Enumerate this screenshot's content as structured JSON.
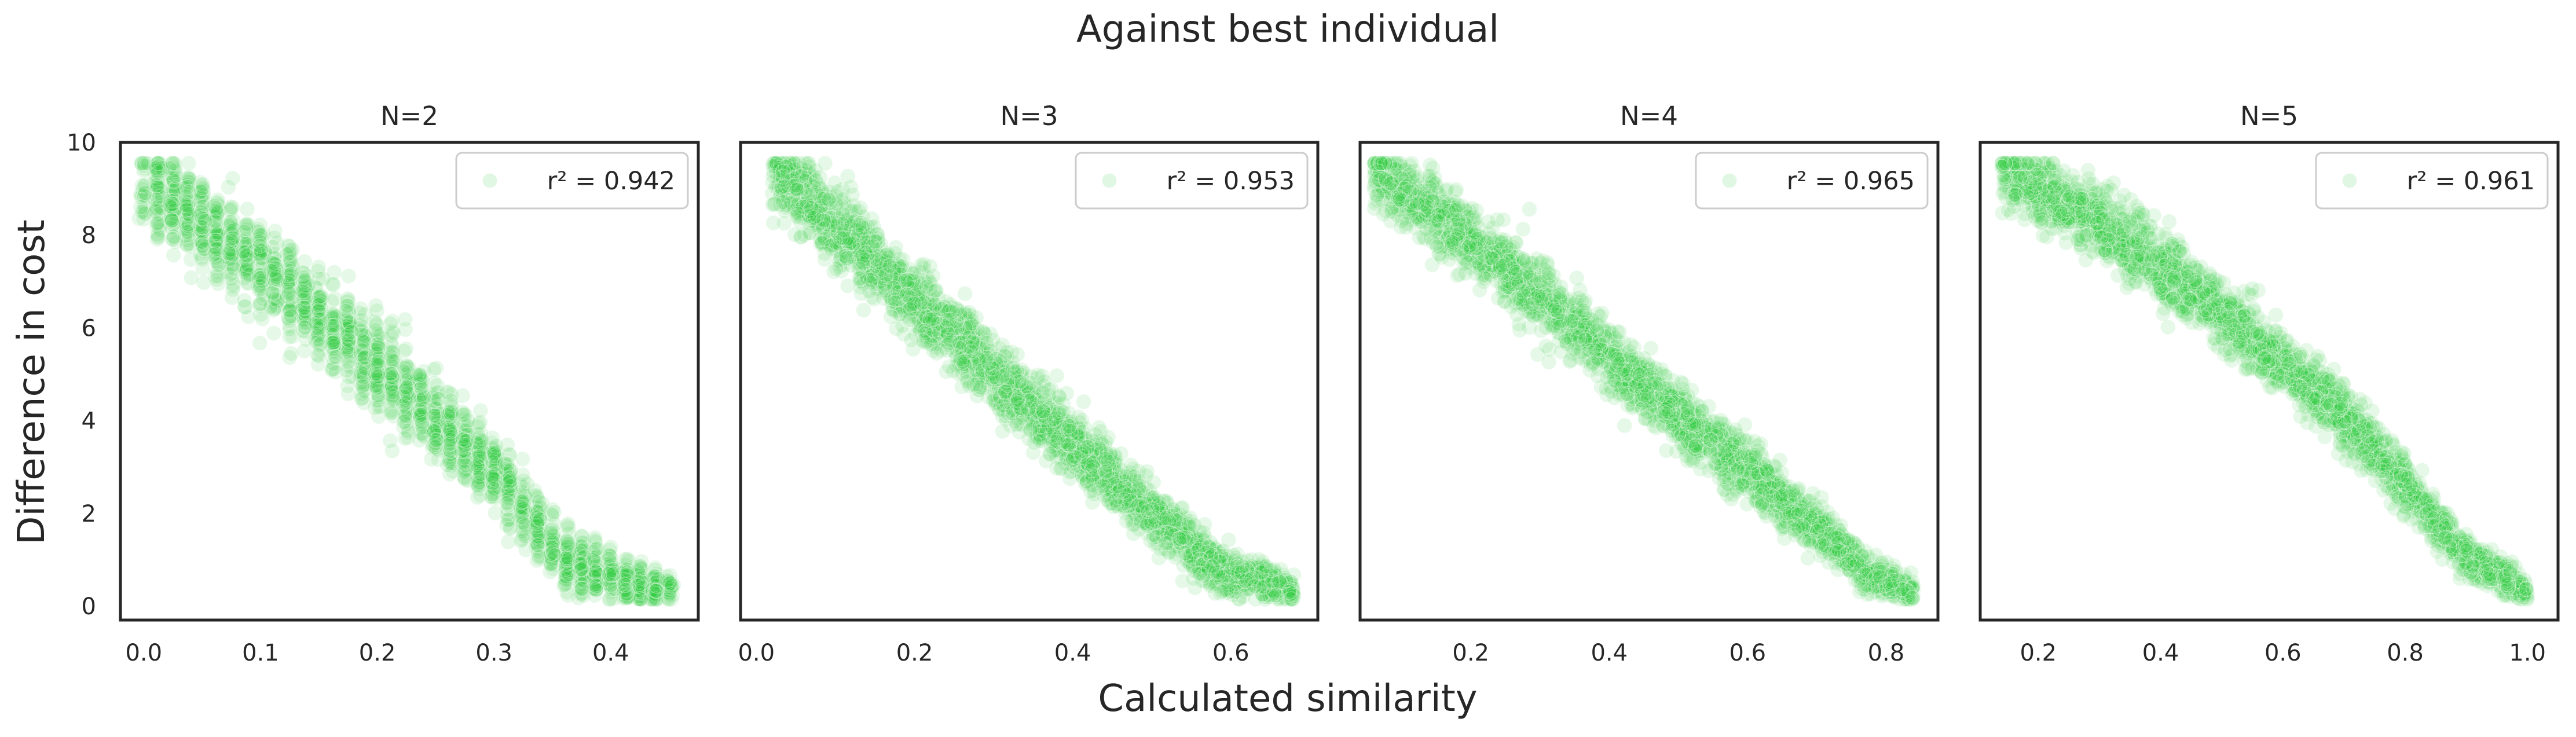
{
  "figure": {
    "title": "Against best individual",
    "xlabel": "Calculated similarity",
    "ylabel": "Difference in cost"
  },
  "colors": {
    "point": "#2ecc40",
    "axes_frame": "#262626",
    "legend_border": "#cccccc",
    "background": "#ffffff"
  },
  "chart_data": [
    {
      "type": "scatter",
      "title": "N=2",
      "legend": "r² = 0.942",
      "legend_position": "top-right",
      "grid": false,
      "xlim": [
        -0.02,
        0.475
      ],
      "ylim": [
        -0.3,
        10.0
      ],
      "xticks": [
        0.0,
        0.1,
        0.2,
        0.3,
        0.4
      ],
      "xtick_labels": [
        "0.0",
        "0.1",
        "0.2",
        "0.3",
        "0.4"
      ],
      "yticks": [
        0,
        2,
        4,
        6,
        8,
        10
      ],
      "ytick_labels": [
        "0",
        "2",
        "4",
        "6",
        "8",
        "10"
      ],
      "trend": [
        [
          0.0,
          9.2
        ],
        [
          0.1,
          7.3
        ],
        [
          0.2,
          5.2
        ],
        [
          0.3,
          2.9
        ],
        [
          0.36,
          1.0
        ],
        [
          0.43,
          0.4
        ]
      ],
      "x_range": [
        0.0,
        0.45
      ],
      "spread": 0.9,
      "discrete_x": true,
      "n_points": 2200
    },
    {
      "type": "scatter",
      "title": "N=3",
      "legend": "r² = 0.953",
      "legend_position": "top-right",
      "grid": false,
      "xlim": [
        -0.02,
        0.71
      ],
      "ylim": [
        -0.3,
        10.0
      ],
      "xticks": [
        0.0,
        0.2,
        0.4,
        0.6
      ],
      "xtick_labels": [
        "0.0",
        "0.2",
        "0.4",
        "0.6"
      ],
      "yticks": [
        0,
        2,
        4,
        6,
        8,
        10
      ],
      "ytick_labels": [],
      "trend": [
        [
          0.02,
          9.4
        ],
        [
          0.1,
          8.2
        ],
        [
          0.2,
          6.6
        ],
        [
          0.3,
          5.0
        ],
        [
          0.4,
          3.5
        ],
        [
          0.5,
          2.0
        ],
        [
          0.58,
          0.8
        ],
        [
          0.68,
          0.35
        ]
      ],
      "x_range": [
        0.02,
        0.68
      ],
      "spread": 0.75,
      "discrete_x": false,
      "n_points": 2600
    },
    {
      "type": "scatter",
      "title": "N=4",
      "legend": "r² = 0.965",
      "legend_position": "top-right",
      "grid": false,
      "xlim": [
        0.04,
        0.875
      ],
      "ylim": [
        -0.3,
        10.0
      ],
      "xticks": [
        0.2,
        0.4,
        0.6,
        0.8
      ],
      "xtick_labels": [
        "0.2",
        "0.4",
        "0.6",
        "0.8"
      ],
      "yticks": [
        0,
        2,
        4,
        6,
        8,
        10
      ],
      "ytick_labels": [],
      "trend": [
        [
          0.06,
          9.4
        ],
        [
          0.2,
          7.9
        ],
        [
          0.3,
          6.7
        ],
        [
          0.4,
          5.4
        ],
        [
          0.5,
          4.1
        ],
        [
          0.6,
          2.9
        ],
        [
          0.7,
          1.7
        ],
        [
          0.78,
          0.6
        ],
        [
          0.84,
          0.3
        ]
      ],
      "x_range": [
        0.06,
        0.84
      ],
      "spread": 0.7,
      "discrete_x": false,
      "n_points": 2600
    },
    {
      "type": "scatter",
      "title": "N=5",
      "legend": "r² = 0.961",
      "legend_position": "top-right",
      "grid": false,
      "xlim": [
        0.105,
        1.05
      ],
      "ylim": [
        -0.3,
        10.0
      ],
      "xticks": [
        0.2,
        0.4,
        0.6,
        0.8,
        1.0
      ],
      "xtick_labels": [
        "0.2",
        "0.4",
        "0.6",
        "0.8",
        "1.0"
      ],
      "yticks": [
        0,
        2,
        4,
        6,
        8,
        10
      ],
      "ytick_labels": [],
      "trend": [
        [
          0.14,
          9.4
        ],
        [
          0.3,
          8.3
        ],
        [
          0.4,
          7.3
        ],
        [
          0.5,
          6.3
        ],
        [
          0.6,
          5.2
        ],
        [
          0.7,
          4.1
        ],
        [
          0.8,
          2.6
        ],
        [
          0.9,
          1.1
        ],
        [
          1.0,
          0.3
        ]
      ],
      "x_range": [
        0.14,
        1.0
      ],
      "spread": 0.7,
      "discrete_x": false,
      "n_points": 2600
    }
  ]
}
